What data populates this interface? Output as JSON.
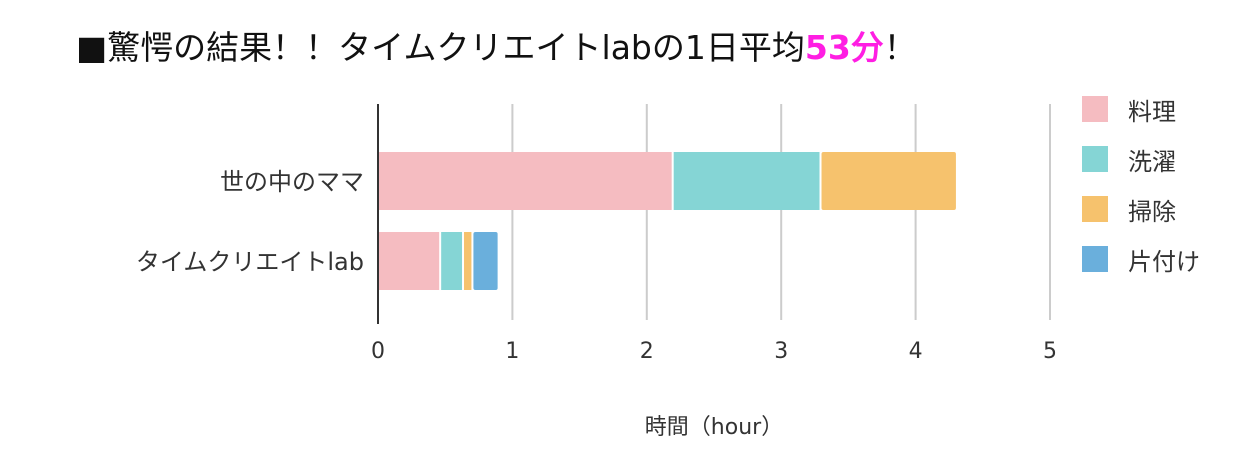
{
  "title": {
    "prefix": "■驚愕の結果！！タイムクリエイトlabの1日平均",
    "highlight": "53分",
    "suffix": "！"
  },
  "colors": {
    "cooking": "#f5bcc1",
    "laundry": "#85d5d5",
    "cleaning": "#f6c26d",
    "tidying": "#6aafdc",
    "highlight": "#ff1ee3",
    "grid": "#cccccc",
    "axis": "#333333"
  },
  "chart_data": {
    "type": "bar",
    "orientation": "horizontal",
    "stacked": true,
    "categories": [
      "世の中のママ",
      "タイムクリエイトlab"
    ],
    "series": [
      {
        "name": "料理",
        "color": "#f5bcc1",
        "values": [
          2.2,
          0.47
        ]
      },
      {
        "name": "洗濯",
        "color": "#85d5d5",
        "values": [
          1.1,
          0.17
        ]
      },
      {
        "name": "掃除",
        "color": "#f6c26d",
        "values": [
          1.0,
          0.07
        ]
      },
      {
        "name": "片付け",
        "color": "#6aafdc",
        "values": [
          0,
          0.18
        ]
      }
    ],
    "xlabel": "時間（hour）",
    "xlim": [
      0,
      5
    ],
    "xticks": [
      "0",
      "1",
      "2",
      "3",
      "4",
      "5"
    ],
    "grid": true,
    "legend_position": "right"
  }
}
